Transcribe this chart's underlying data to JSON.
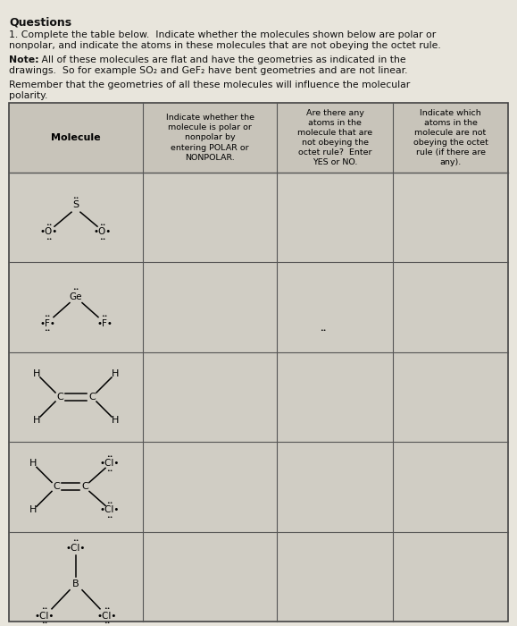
{
  "bg_color": "#d6d2c8",
  "page_color": "#e8e5dc",
  "text_color": "#1a1a1a",
  "table_cell_color": "#d0cdc4",
  "col_headers": [
    "Molecule",
    "Indicate whether the\nmolecule is polar or\nnonpolar by\nentering POLAR or\nNONPOLAR.",
    "Are there any\natoms in the\nmolecule that are\nnot obeying the\noctet rule?  Enter\nYES or NO.",
    "Indicate which\natoms in the\nmolecule are not\nobeying the octet\nrule (if there are\nany)."
  ]
}
